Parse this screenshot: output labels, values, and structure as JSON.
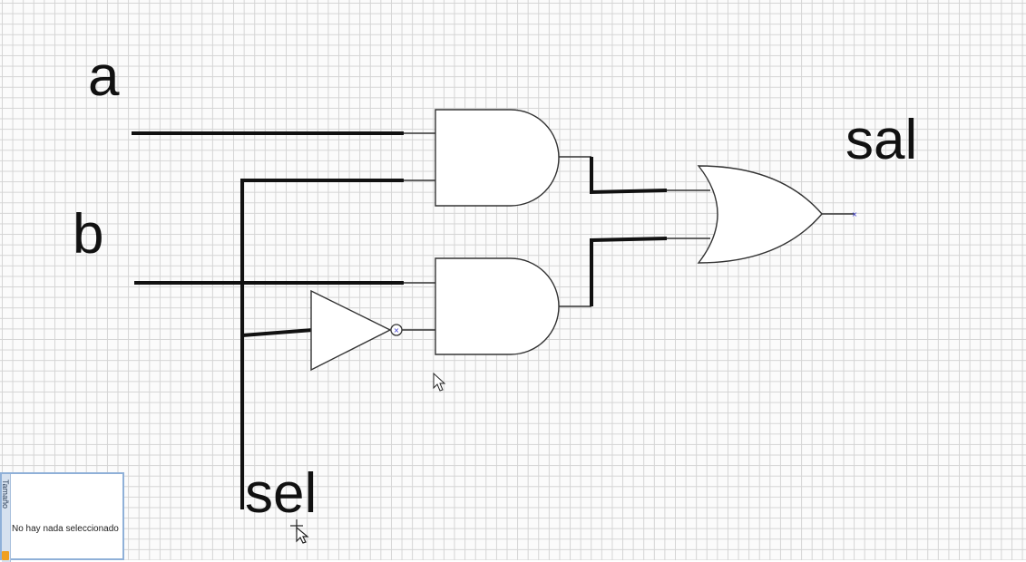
{
  "circuit": {
    "inputs": {
      "a": "a",
      "b": "b",
      "sel": "sel"
    },
    "output": "sal",
    "gates": [
      "AND",
      "AND",
      "OR",
      "NOT"
    ],
    "wire_color": "#111111",
    "gate_fill": "#ffffff",
    "pin_marker_color": "#3a3ad0"
  },
  "properties_panel": {
    "tab_label": "Tamaño",
    "empty_message": "No hay nada seleccionado",
    "icon": "folder-icon"
  },
  "cursors": [
    "arrow-cursor-icon",
    "move-cursor-icon"
  ]
}
